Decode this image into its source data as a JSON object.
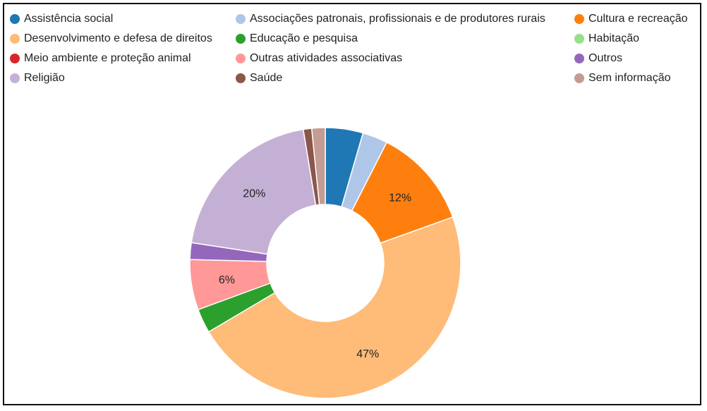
{
  "chart_data": {
    "type": "pie",
    "donut": true,
    "title": "",
    "legend_position": "top",
    "series": [
      {
        "name": "Assistência social",
        "value": 4.5,
        "color": "#1f77b4"
      },
      {
        "name": "Associações patronais, profissionais e de produtores rurais",
        "value": 3.0,
        "color": "#aec7e8"
      },
      {
        "name": "Cultura e recreação",
        "value": 12.0,
        "color": "#ff7f0e"
      },
      {
        "name": "Desenvolvimento e defesa de direitos",
        "value": 47.0,
        "color": "#ffbb78",
        "label": "47%"
      },
      {
        "name": "Educação e pesquisa",
        "value": 2.9,
        "color": "#2ca02c"
      },
      {
        "name": "Habitação",
        "value": 0.0,
        "color": "#98df8a"
      },
      {
        "name": "Meio ambiente e proteção animal",
        "value": 0.0,
        "color": "#d62728"
      },
      {
        "name": "Outras atividades associativas",
        "value": 6.0,
        "color": "#ff9896",
        "label": "6%"
      },
      {
        "name": "Outros",
        "value": 2.0,
        "color": "#9467bd"
      },
      {
        "name": "Religião",
        "value": 20.0,
        "color": "#c5b0d5",
        "label": "20%"
      },
      {
        "name": "Saúde",
        "value": 1.0,
        "color": "#8c564b"
      },
      {
        "name": "Sem informação",
        "value": 1.6,
        "color": "#c49c94"
      }
    ],
    "labels": {
      "Cultura e recreação": "12%",
      "Desenvolvimento e defesa de direitos": "47%",
      "Outras atividades associativas": "6%",
      "Religião": "20%"
    }
  }
}
